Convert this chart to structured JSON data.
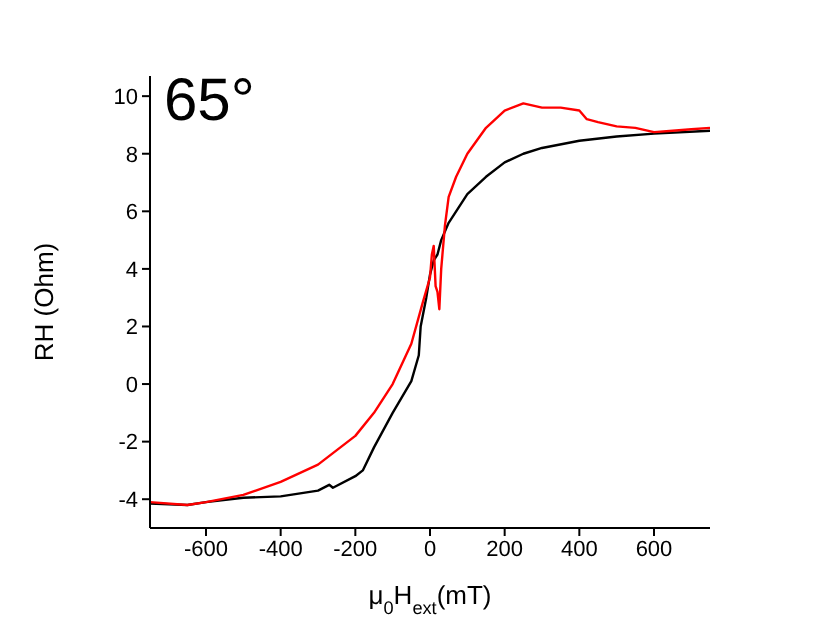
{
  "chart_data": {
    "type": "line",
    "xlabel": "μ$_{0}$H$_{ext}$(mT)",
    "ylabel": "RH (Ohm)",
    "annotations": [
      "65°"
    ],
    "xlim": [
      -750,
      750
    ],
    "xticks": [
      -600,
      -400,
      -200,
      0,
      200,
      400,
      600
    ],
    "ylim": [
      -5,
      10.7
    ],
    "yticks": [
      -4,
      -2,
      0,
      2,
      4,
      6,
      8,
      10
    ],
    "grid": false,
    "legend": false,
    "marker": "none",
    "line_style": "solid",
    "series": [
      {
        "color": "#000000",
        "x": [
          -750,
          -650,
          -600,
          -500,
          -400,
          -300,
          -270,
          -260,
          -200,
          -180,
          -150,
          -100,
          -50,
          -30,
          -25,
          -10,
          0,
          10,
          20,
          30,
          50,
          80,
          100,
          150,
          200,
          250,
          300,
          400,
          500,
          600,
          750
        ],
        "values": [
          -4.15,
          -4.2,
          -4.1,
          -3.95,
          -3.9,
          -3.7,
          -3.5,
          -3.6,
          -3.2,
          -3.0,
          -2.2,
          -1.0,
          0.1,
          1.0,
          2.0,
          3.0,
          3.8,
          4.3,
          4.5,
          5.0,
          5.6,
          6.2,
          6.6,
          7.2,
          7.7,
          8.0,
          8.2,
          8.45,
          8.6,
          8.7,
          8.8
        ]
      },
      {
        "color": "#ff0000",
        "x": [
          -750,
          -650,
          -600,
          -500,
          -400,
          -300,
          -200,
          -150,
          -100,
          -50,
          -20,
          0,
          5,
          10,
          15,
          20,
          25,
          30,
          40,
          50,
          70,
          100,
          150,
          200,
          250,
          300,
          350,
          400,
          420,
          450,
          500,
          550,
          600,
          650,
          700,
          750
        ],
        "values": [
          -4.1,
          -4.2,
          -4.1,
          -3.85,
          -3.4,
          -2.8,
          -1.8,
          -1.0,
          0.0,
          1.4,
          2.8,
          3.7,
          4.5,
          4.8,
          3.4,
          3.2,
          2.6,
          4.0,
          5.5,
          6.5,
          7.2,
          8.0,
          8.9,
          9.5,
          9.75,
          9.6,
          9.6,
          9.5,
          9.2,
          9.1,
          8.95,
          8.9,
          8.75,
          8.8,
          8.85,
          8.9
        ]
      }
    ]
  }
}
